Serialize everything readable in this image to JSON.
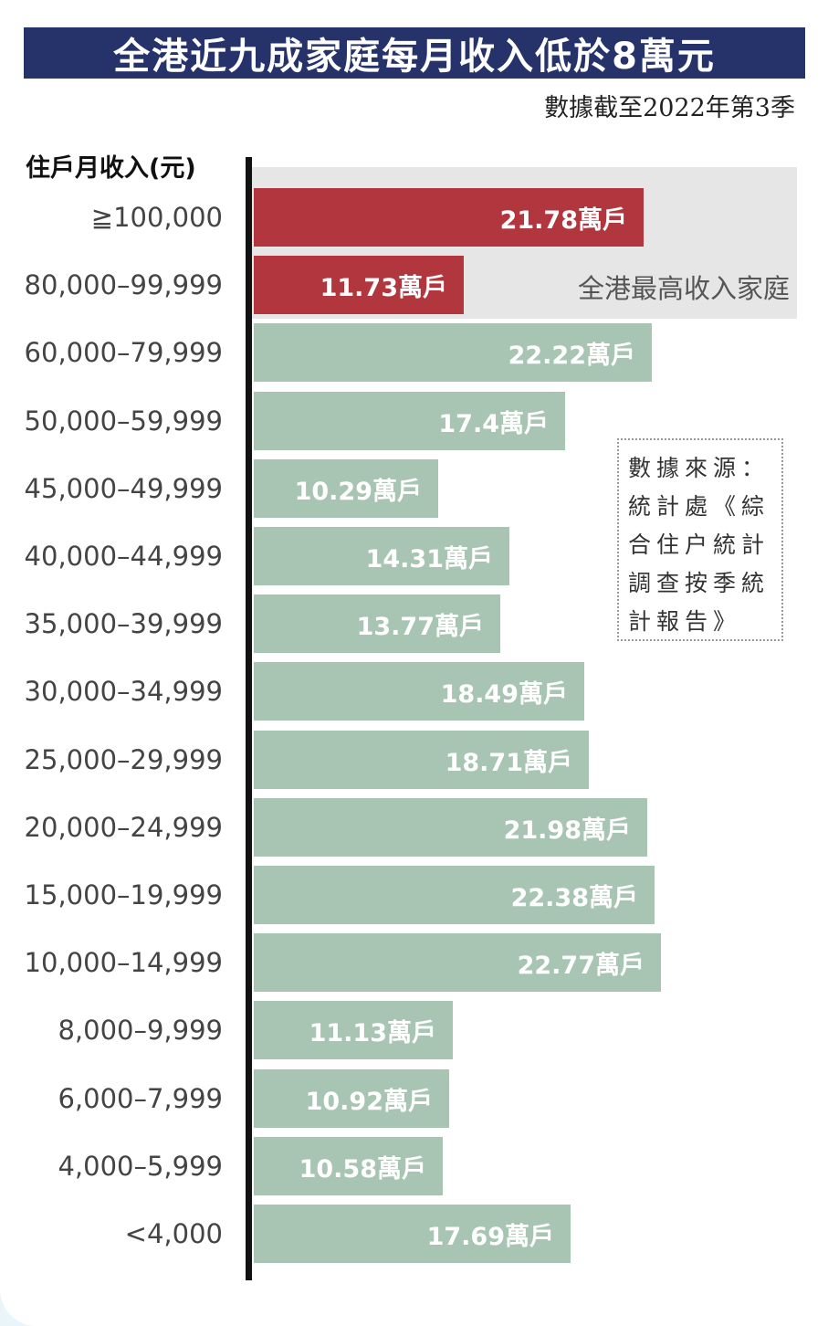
{
  "title": "全港近九成家庭每月收入低於8萬元",
  "subtitle": "數據截至2022年第3季",
  "highlight_label": "全港最高收入家庭",
  "source_lines": [
    "數據來源：",
    "統計處《綜",
    "合住户統計",
    "調查按季統",
    "計報告》"
  ],
  "colors": {
    "title_bg": "#26326a",
    "highlight_bar": "#b2363d",
    "normal_bar": "#a8c5b4",
    "highlight_zone": "#e6e6e6",
    "axis": "#111111"
  },
  "chart_data": {
    "type": "bar",
    "orientation": "horizontal",
    "ylabel": "住戶月收入(元)",
    "unit": "萬戶",
    "categories": [
      "≧100,000",
      "80,000–99,999",
      "60,000–79,999",
      "50,000–59,999",
      "45,000–49,999",
      "40,000–44,999",
      "35,000–39,999",
      "30,000–34,999",
      "25,000–29,999",
      "20,000–24,999",
      "15,000–19,999",
      "10,000–14,999",
      "8,000–9,999",
      "6,000–7,999",
      "4,000–5,999",
      "<4,000"
    ],
    "values": [
      21.78,
      11.73,
      22.22,
      17.4,
      10.29,
      14.31,
      13.77,
      18.49,
      18.71,
      21.98,
      22.38,
      22.77,
      11.13,
      10.92,
      10.58,
      17.69
    ],
    "value_labels": [
      "21.78萬戶",
      "11.73萬戶",
      "22.22萬戶",
      "17.4萬戶",
      "10.29萬戶",
      "14.31萬戶",
      "13.77萬戶",
      "18.49萬戶",
      "18.71萬戶",
      "21.98萬戶",
      "22.38萬戶",
      "22.77萬戶",
      "11.13萬戶",
      "10.92萬戶",
      "10.58萬戶",
      "17.69萬戶"
    ],
    "highlighted": [
      true,
      true,
      false,
      false,
      false,
      false,
      false,
      false,
      false,
      false,
      false,
      false,
      false,
      false,
      false,
      false
    ]
  }
}
